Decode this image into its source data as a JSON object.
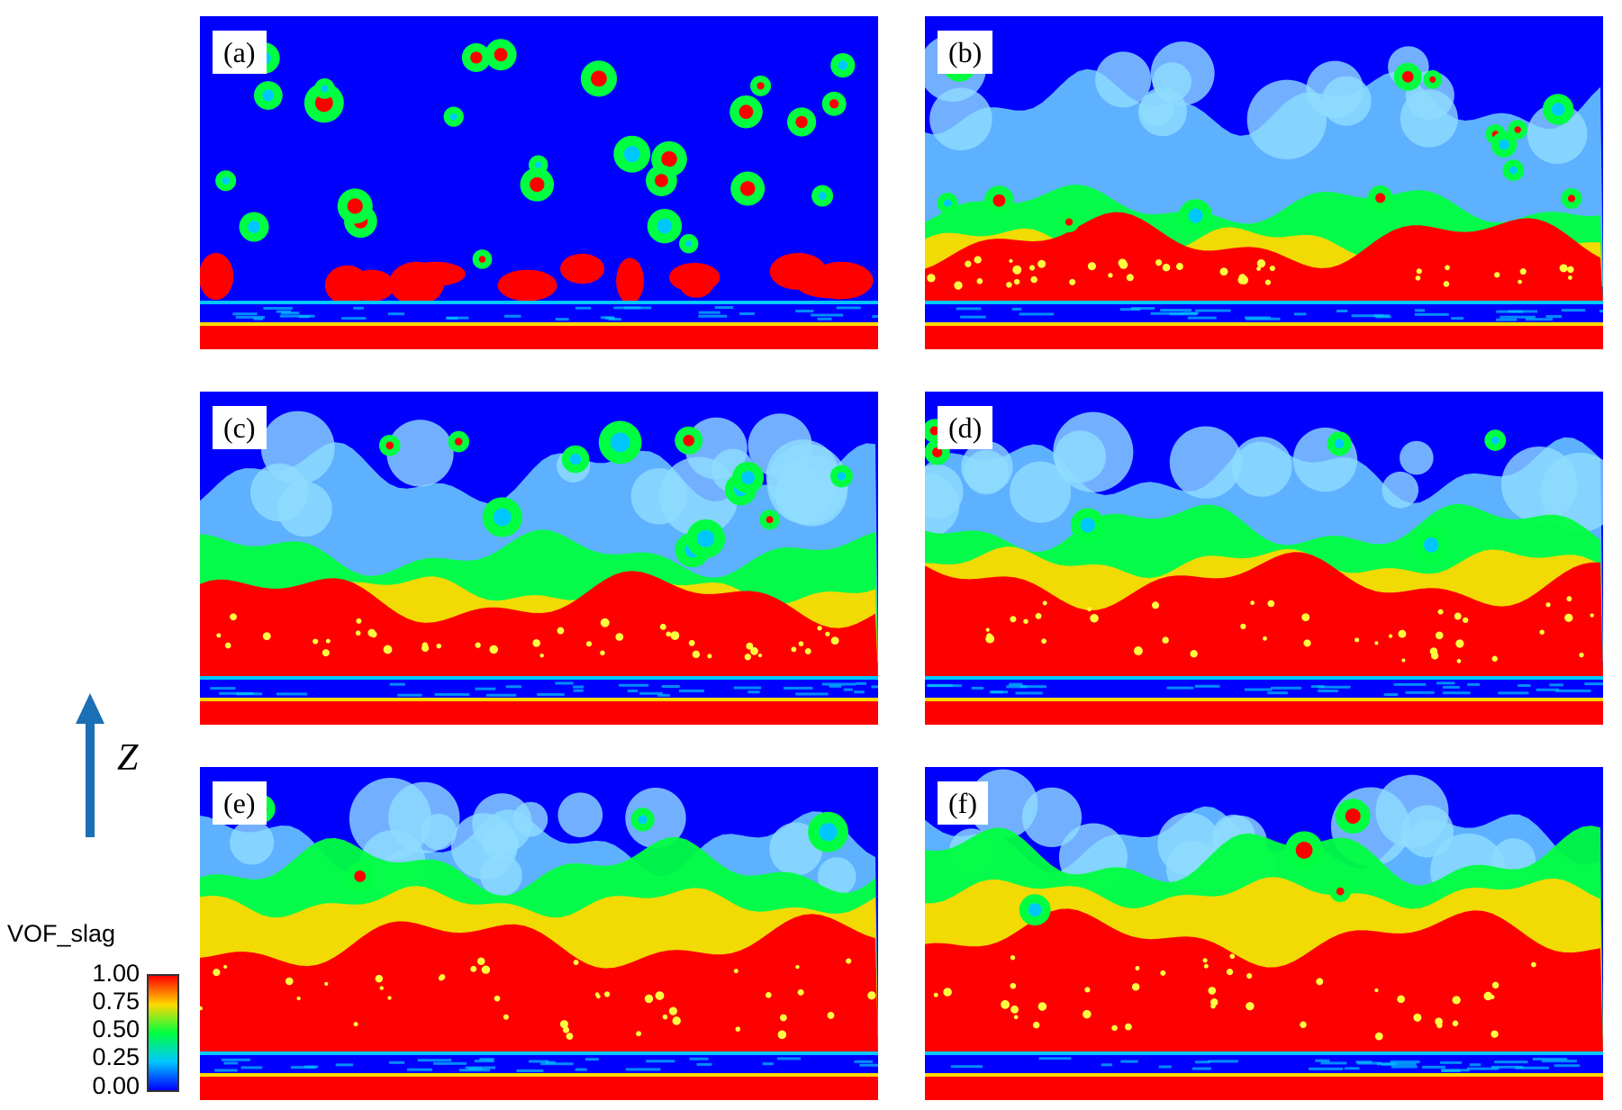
{
  "panels": [
    {
      "label": "(a)",
      "stage": 0
    },
    {
      "label": "(b)",
      "stage": 1
    },
    {
      "label": "(c)",
      "stage": 2
    },
    {
      "label": "(d)",
      "stage": 3
    },
    {
      "label": "(e)",
      "stage": 4
    },
    {
      "label": "(f)",
      "stage": 5
    }
  ],
  "axis": {
    "label": "Z",
    "arrow_color": "#1a6fb5"
  },
  "colorbar": {
    "title": "VOF_slag",
    "ticks": [
      "1.00",
      "0.75",
      "0.50",
      "0.25",
      "0.00"
    ],
    "colors": [
      "#0000ff",
      "#00c8ff",
      "#00ff40",
      "#ffd800",
      "#ff0000"
    ]
  }
}
